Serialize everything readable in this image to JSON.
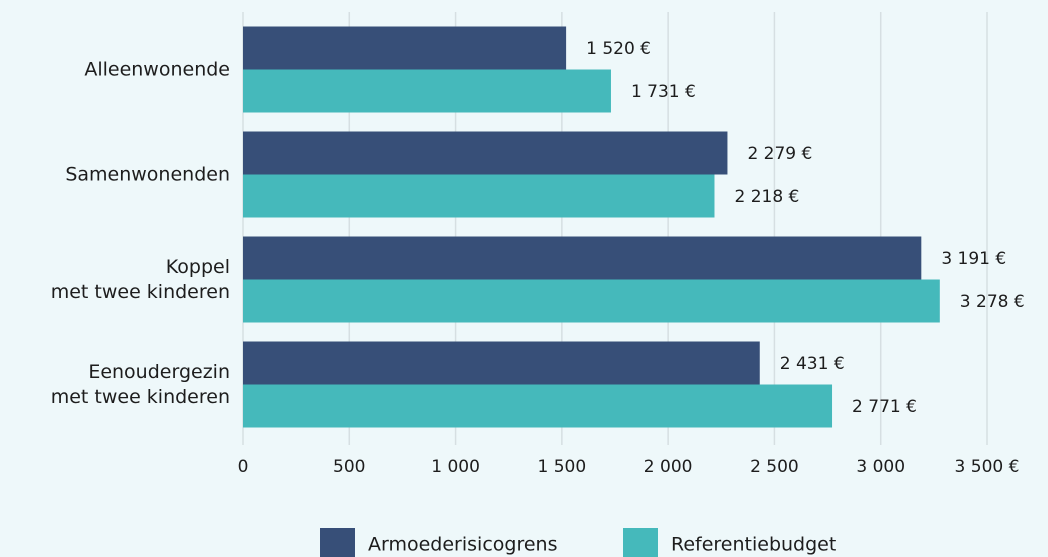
{
  "chart_data": {
    "type": "bar",
    "orientation": "horizontal",
    "categories": [
      "Alleenwonende",
      "Samenwonenden",
      "Koppel\nmet twee kinderen",
      "Eenoudergezin\nmet twee kinderen"
    ],
    "series": [
      {
        "name": "Armoederisicogrens",
        "color": "#374f78",
        "values": [
          1520,
          2279,
          3191,
          2431
        ],
        "value_labels": [
          "1 520 €",
          "2 279 €",
          "3 191 €",
          "2 431 €"
        ]
      },
      {
        "name": "Referentiebudget",
        "color": "#45b9bb",
        "values": [
          1731,
          2218,
          3278,
          2771
        ],
        "value_labels": [
          "1 731 €",
          "2 218 €",
          "3 278 €",
          "2 771 €"
        ]
      }
    ],
    "xlim": [
      0,
      3500
    ],
    "xticks": [
      0,
      500,
      {
        "value": 1000,
        "label": "1 000"
      },
      {
        "value": 1500,
        "label": "1 500"
      },
      {
        "value": 2000,
        "label": "2 000"
      },
      {
        "value": 2500,
        "label": "2 500"
      },
      {
        "value": 3000,
        "label": "3 000"
      },
      {
        "value": 3500,
        "label": "3 500 €"
      }
    ],
    "grid": true,
    "legend": "bottom"
  }
}
